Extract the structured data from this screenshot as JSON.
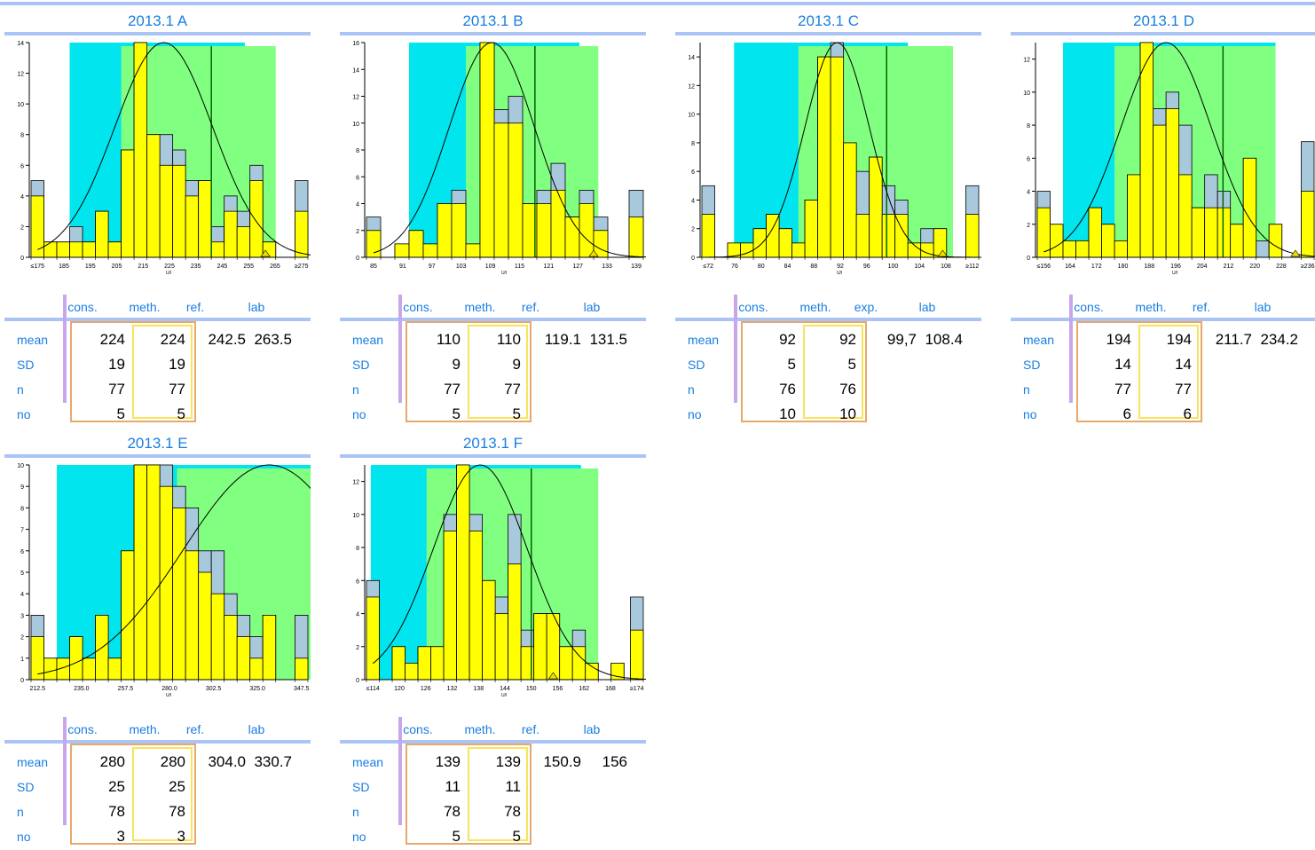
{
  "colors": {
    "accent": "#1a7ee0",
    "band_cyan": "#00e5ee",
    "band_green": "#80ff80",
    "bar_yellow": "#ffff00",
    "bar_blue": "#a8c8dc",
    "divider": "#a9c4f5",
    "purple": "#c9a6ec",
    "orange": "#e8a86a",
    "ybox": "#f5e55a"
  },
  "panels": [
    {
      "title": "2013.1 A",
      "headers": {
        "c1": "cons.",
        "c2": "meth.",
        "c3": "ref.",
        "c4": "lab"
      },
      "rows": [
        {
          "label": "mean",
          "cons": "224",
          "meth": "224",
          "ref": "242.5",
          "lab": "263.5"
        },
        {
          "label": "SD",
          "cons": "19",
          "meth": "19",
          "ref": "",
          "lab": ""
        },
        {
          "label": "n",
          "cons": "77",
          "meth": "77",
          "ref": "",
          "lab": ""
        },
        {
          "label": "no",
          "cons": "5",
          "meth": "5",
          "ref": "",
          "lab": ""
        }
      ]
    },
    {
      "title": "2013.1 B",
      "headers": {
        "c1": "cons.",
        "c2": "meth.",
        "c3": "ref.",
        "c4": "lab"
      },
      "rows": [
        {
          "label": "mean",
          "cons": "110",
          "meth": "110",
          "ref": "119.1",
          "lab": "131.5"
        },
        {
          "label": "SD",
          "cons": "9",
          "meth": "9",
          "ref": "",
          "lab": ""
        },
        {
          "label": "n",
          "cons": "77",
          "meth": "77",
          "ref": "",
          "lab": ""
        },
        {
          "label": "no",
          "cons": "5",
          "meth": "5",
          "ref": "",
          "lab": ""
        }
      ]
    },
    {
      "title": "2013.1 C",
      "headers": {
        "c1": "cons.",
        "c2": "meth.",
        "c3": "exp.",
        "c4": "lab"
      },
      "rows": [
        {
          "label": "mean",
          "cons": "92",
          "meth": "92",
          "ref": "99,7",
          "lab": "108.4"
        },
        {
          "label": "SD",
          "cons": "5",
          "meth": "5",
          "ref": "",
          "lab": ""
        },
        {
          "label": "n",
          "cons": "76",
          "meth": "76",
          "ref": "",
          "lab": ""
        },
        {
          "label": "no",
          "cons": "10",
          "meth": "10",
          "ref": "",
          "lab": ""
        }
      ]
    },
    {
      "title": "2013.1 D",
      "headers": {
        "c1": "cons.",
        "c2": "meth.",
        "c3": "ref.",
        "c4": "lab"
      },
      "rows": [
        {
          "label": "mean",
          "cons": "194",
          "meth": "194",
          "ref": "211.7",
          "lab": "234.2"
        },
        {
          "label": "SD",
          "cons": "14",
          "meth": "14",
          "ref": "",
          "lab": ""
        },
        {
          "label": "n",
          "cons": "77",
          "meth": "77",
          "ref": "",
          "lab": ""
        },
        {
          "label": "no",
          "cons": "6",
          "meth": "6",
          "ref": "",
          "lab": ""
        }
      ]
    },
    {
      "title": "2013.1 E",
      "headers": {
        "c1": "cons.",
        "c2": "meth.",
        "c3": "ref.",
        "c4": "lab"
      },
      "rows": [
        {
          "label": "mean",
          "cons": "280",
          "meth": "280",
          "ref": "304.0",
          "lab": "330.7"
        },
        {
          "label": "SD",
          "cons": "25",
          "meth": "25",
          "ref": "",
          "lab": ""
        },
        {
          "label": "n",
          "cons": "78",
          "meth": "78",
          "ref": "",
          "lab": ""
        },
        {
          "label": "no",
          "cons": "3",
          "meth": "3",
          "ref": "",
          "lab": ""
        }
      ]
    },
    {
      "title": "2013.1 F",
      "headers": {
        "c1": "cons.",
        "c2": "meth.",
        "c3": "ref.",
        "c4": "lab"
      },
      "rows": [
        {
          "label": "mean",
          "cons": "139",
          "meth": "139",
          "ref": "150.9",
          "lab": "156"
        },
        {
          "label": "SD",
          "cons": "11",
          "meth": "11",
          "ref": "",
          "lab": ""
        },
        {
          "label": "n",
          "cons": "78",
          "meth": "78",
          "ref": "",
          "lab": ""
        },
        {
          "label": "no",
          "cons": "5",
          "meth": "5",
          "ref": "",
          "lab": ""
        }
      ]
    }
  ],
  "chart_data": [
    {
      "type": "bar",
      "title": "2013.1 A",
      "xlabel": "U/l",
      "ylabel": "",
      "categories": [
        "≤175",
        "180",
        "185",
        "190",
        "195",
        "200",
        "205",
        "210",
        "215",
        "220",
        "225",
        "230",
        "235",
        "240",
        "245",
        "250",
        "255",
        "260",
        "265",
        "270",
        "≥275"
      ],
      "tick_labels": [
        "≤175",
        "185",
        "195",
        "205",
        "215",
        "225",
        "235",
        "245",
        "255",
        "265",
        "≥275"
      ],
      "series": [
        {
          "values": [
            4,
            1,
            1,
            1,
            1,
            3,
            1,
            7,
            14,
            8,
            6,
            6,
            4,
            5,
            1,
            3,
            2,
            5,
            1,
            0,
            3
          ]
        },
        {
          "values": [
            5,
            1,
            1,
            2,
            1,
            3,
            1,
            7,
            14,
            8,
            8,
            7,
            5,
            5,
            2,
            4,
            3,
            6,
            1,
            0,
            5
          ]
        }
      ],
      "ylim": [
        0,
        14
      ],
      "yticks": [
        0,
        2,
        4,
        6,
        8,
        10,
        12,
        14
      ],
      "mean": 224,
      "sd": 19,
      "peak": 14,
      "cyan_band": [
        190,
        258
      ],
      "green_band": [
        210,
        270
      ],
      "marker_x": 242.5,
      "lab_x": 263.5
    },
    {
      "type": "bar",
      "title": "2013.1 B",
      "xlabel": "U/l",
      "ylabel": "",
      "categories": [
        "≤85",
        "88",
        "91",
        "94",
        "97",
        "100",
        "103",
        "106",
        "109",
        "112",
        "115",
        "118",
        "121",
        "124",
        "127",
        "130",
        "133",
        "136",
        "≥139"
      ],
      "tick_labels": [
        "85",
        "91",
        "97",
        "103",
        "109",
        "115",
        "121",
        "127",
        "133",
        "139"
      ],
      "series": [
        {
          "values": [
            2,
            0,
            1,
            2,
            1,
            4,
            4,
            1,
            16,
            10,
            10,
            4,
            4,
            5,
            3,
            4,
            2,
            0,
            3
          ]
        },
        {
          "values": [
            3,
            0,
            1,
            2,
            1,
            4,
            5,
            1,
            16,
            11,
            12,
            4,
            5,
            7,
            3,
            5,
            3,
            0,
            5
          ]
        }
      ],
      "ylim": [
        0,
        16
      ],
      "yticks": [
        0,
        2,
        4,
        6,
        8,
        10,
        12,
        14,
        16
      ],
      "mean": 110,
      "sd": 9,
      "peak": 16,
      "cyan_band": [
        94,
        130
      ],
      "green_band": [
        106,
        134
      ],
      "marker_x": 119.1,
      "lab_x": 131.5
    },
    {
      "type": "bar",
      "title": "2013.1 C",
      "xlabel": "U/l",
      "ylabel": "",
      "categories": [
        "≤72",
        "74",
        "76",
        "78",
        "80",
        "82",
        "84",
        "86",
        "88",
        "90",
        "92",
        "94",
        "96",
        "98",
        "100",
        "102",
        "104",
        "106",
        "108",
        "110",
        "≥112"
      ],
      "tick_labels": [
        "≤72",
        "76",
        "80",
        "84",
        "88",
        "92",
        "96",
        "100",
        "104",
        "108",
        "≥112"
      ],
      "series": [
        {
          "values": [
            3,
            0,
            1,
            1,
            2,
            3,
            2,
            1,
            4,
            14,
            14,
            8,
            3,
            7,
            3,
            3,
            1,
            1,
            2,
            0,
            3
          ]
        },
        {
          "values": [
            5,
            0,
            1,
            1,
            2,
            3,
            2,
            1,
            4,
            14,
            15,
            8,
            6,
            7,
            5,
            4,
            1,
            2,
            2,
            0,
            5
          ]
        }
      ],
      "ylim": [
        0,
        15
      ],
      "yticks": [
        0,
        2,
        4,
        6,
        8,
        10,
        12,
        14
      ],
      "mean": 92,
      "sd": 5,
      "peak": 15,
      "cyan_band": [
        77,
        104
      ],
      "green_band": [
        87,
        111
      ],
      "marker_x": 99.7,
      "lab_x": 108.4
    },
    {
      "type": "bar",
      "title": "2013.1 D",
      "xlabel": "U/l",
      "ylabel": "",
      "categories": [
        "≤156",
        "160",
        "164",
        "168",
        "172",
        "176",
        "180",
        "184",
        "188",
        "192",
        "196",
        "200",
        "204",
        "208",
        "212",
        "216",
        "220",
        "224",
        "228",
        "232",
        "≥236"
      ],
      "tick_labels": [
        "≤156",
        "164",
        "172",
        "180",
        "188",
        "196",
        "204",
        "212",
        "220",
        "228",
        "≥236"
      ],
      "series": [
        {
          "values": [
            3,
            2,
            1,
            1,
            3,
            2,
            1,
            5,
            13,
            8,
            9,
            5,
            3,
            3,
            3,
            2,
            6,
            0,
            2,
            0,
            4
          ]
        },
        {
          "values": [
            4,
            2,
            1,
            1,
            3,
            2,
            1,
            5,
            13,
            9,
            10,
            8,
            3,
            5,
            4,
            2,
            6,
            1,
            2,
            0,
            7
          ]
        }
      ],
      "ylim": [
        0,
        13
      ],
      "yticks": [
        0,
        2,
        4,
        6,
        8,
        10,
        12
      ],
      "mean": 194,
      "sd": 14,
      "peak": 13,
      "cyan_band": [
        164,
        230
      ],
      "green_band": [
        180,
        230
      ],
      "marker_x": 211.7,
      "lab_x": 234.2
    },
    {
      "type": "bar",
      "title": "2013.1 E",
      "xlabel": "U/l",
      "ylabel": "",
      "categories": [
        "≤212.5",
        "216.25",
        "220.0",
        "223.75",
        "227.5",
        "231.25",
        "235.0",
        "238.75",
        "242.5",
        "246.25",
        "250.0",
        "253.75",
        "257.5",
        "261.25",
        "265.0",
        "268.75",
        "272.5",
        "276.25",
        "280.0",
        "283.75",
        "≥287.5"
      ],
      "tick_labels": [
        "212.5",
        "235.0",
        "257.5",
        "280.0",
        "302.5",
        "325.0",
        "347.5"
      ],
      "series": [
        {
          "values": [
            2,
            1,
            1,
            2,
            1,
            3,
            1,
            6,
            10,
            10,
            9,
            8,
            6,
            5,
            4,
            3,
            2,
            1,
            3,
            0,
            1
          ]
        },
        {
          "values": [
            3,
            1,
            1,
            2,
            1,
            3,
            1,
            6,
            10,
            10,
            10,
            9,
            8,
            6,
            6,
            4,
            3,
            2,
            3,
            0,
            3
          ]
        }
      ],
      "ylim": [
        0,
        10
      ],
      "yticks": [
        0,
        1,
        2,
        3,
        4,
        5,
        6,
        7,
        8,
        9,
        10
      ],
      "mean": 280,
      "sd": 25,
      "peak": 10,
      "cyan_band": [
        220,
        305
      ],
      "green_band": [
        255,
        312
      ],
      "marker_x": 304.0,
      "lab_x": 330.7
    },
    {
      "type": "bar",
      "title": "2013.1 F",
      "xlabel": "U/l",
      "ylabel": "",
      "categories": [
        "≤114",
        "117",
        "120",
        "123",
        "126",
        "129",
        "132",
        "135",
        "138",
        "141",
        "144",
        "147",
        "150",
        "153",
        "156",
        "159",
        "162",
        "165",
        "168",
        "171",
        "≥174"
      ],
      "tick_labels": [
        "≤114",
        "120",
        "126",
        "132",
        "138",
        "144",
        "150",
        "156",
        "162",
        "168",
        "≥174"
      ],
      "series": [
        {
          "values": [
            5,
            0,
            2,
            1,
            2,
            2,
            9,
            13,
            9,
            6,
            4,
            7,
            2,
            4,
            4,
            2,
            2,
            1,
            0,
            1,
            3
          ]
        },
        {
          "values": [
            6,
            0,
            2,
            1,
            2,
            2,
            10,
            13,
            10,
            6,
            5,
            10,
            3,
            4,
            4,
            2,
            3,
            1,
            0,
            1,
            5
          ]
        }
      ],
      "ylim": [
        0,
        13
      ],
      "yticks": [
        0,
        2,
        4,
        6,
        8,
        10,
        12
      ],
      "mean": 139,
      "sd": 11,
      "peak": 13,
      "cyan_band": [
        115,
        164
      ],
      "green_band": [
        128,
        168
      ],
      "marker_x": 150.9,
      "lab_x": 156
    }
  ]
}
